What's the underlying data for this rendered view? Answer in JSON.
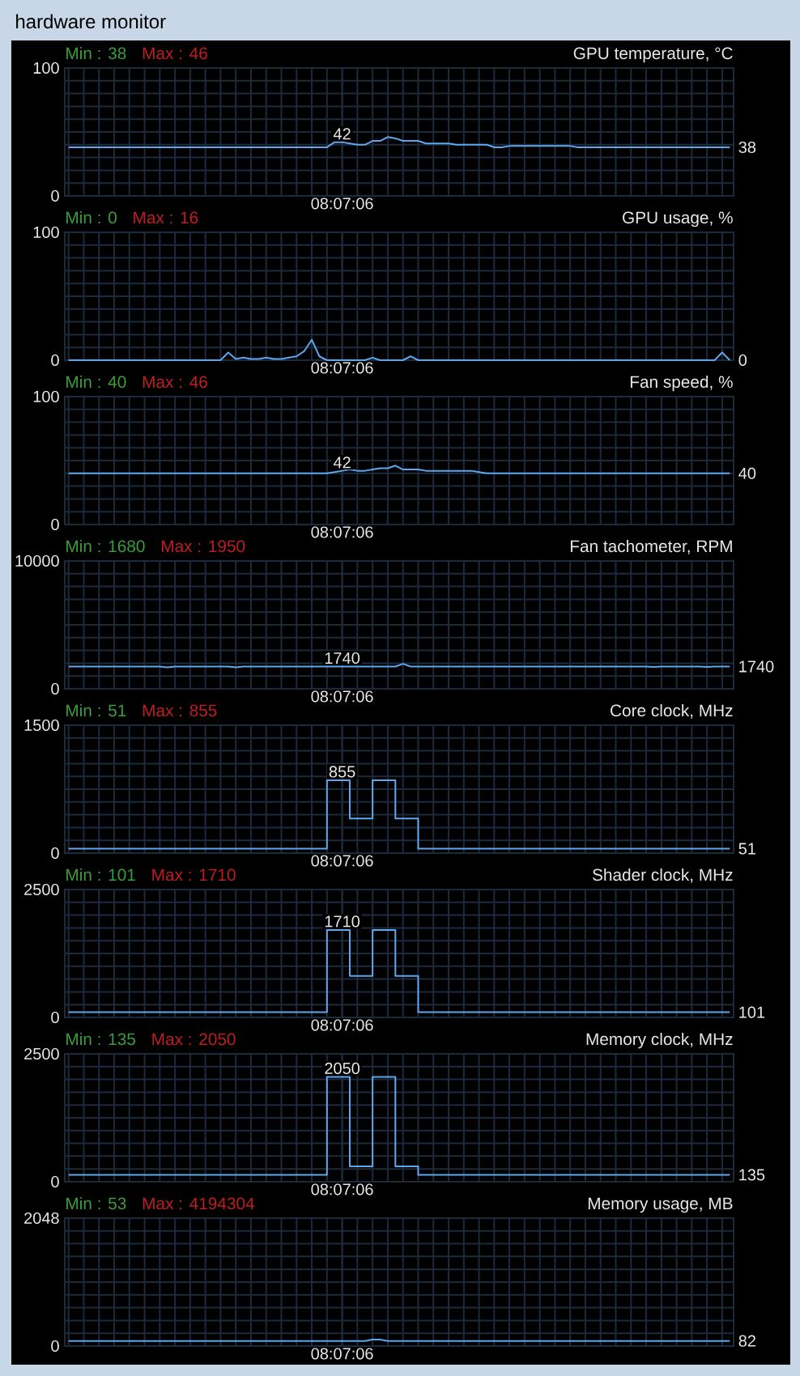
{
  "chart_data": [
    {
      "type": "other",
      "title": "hardware monitor"
    },
    {
      "type": "line",
      "title": "GPU temperature, °C",
      "annotations": [
        "Min : 38",
        "Max : 46"
      ],
      "color": "#5ea6ee",
      "grid": true,
      "ylim": [
        0,
        100
      ],
      "yticks": [
        0,
        {
          "value": 10,
          "label": null
        },
        {
          "value": 20,
          "label": null
        },
        {
          "value": 30,
          "label": null
        },
        {
          "value": 40,
          "label": null
        },
        {
          "value": 50,
          "label": null
        },
        {
          "value": 60,
          "label": null
        },
        {
          "value": 70,
          "label": null
        },
        {
          "value": 80,
          "label": null
        },
        {
          "value": 90,
          "label": null
        },
        100
      ],
      "categories": [
        null,
        null,
        null,
        null,
        null,
        null,
        null,
        null,
        null,
        null,
        null,
        null,
        null,
        null,
        null,
        null,
        null,
        null,
        null,
        null,
        null,
        null,
        null,
        null,
        null,
        null,
        null,
        null,
        null,
        null,
        null,
        null,
        null,
        null,
        null,
        null,
        "08:07:06",
        null,
        null,
        null,
        null,
        null,
        null,
        null,
        null,
        null,
        null,
        null,
        null,
        null,
        null,
        null,
        null,
        null,
        null,
        null,
        null,
        null,
        null,
        null,
        null,
        null,
        null,
        null,
        null,
        null,
        null,
        null,
        null,
        null,
        null,
        null,
        null,
        null,
        null,
        null,
        null,
        null,
        null,
        null,
        null,
        null,
        null,
        null,
        null,
        null,
        null,
        null
      ],
      "values": [
        38,
        38,
        38,
        38,
        38,
        38,
        38,
        38,
        38,
        38,
        38,
        38,
        38,
        38,
        38,
        38,
        38,
        38,
        38,
        38,
        38,
        38,
        38,
        38,
        38,
        38,
        38,
        38,
        38,
        38,
        38,
        38,
        38,
        38,
        38,
        42,
        42,
        41,
        40,
        40,
        43,
        43,
        46,
        45,
        43,
        43,
        43,
        41,
        41,
        41,
        41,
        40,
        40,
        40,
        40,
        40,
        38,
        38,
        39,
        39,
        39,
        39,
        39,
        39,
        39,
        39,
        39,
        38,
        38,
        38,
        38,
        38,
        38,
        38,
        38,
        38,
        38,
        38,
        38,
        38,
        38,
        38,
        38,
        38,
        38,
        38,
        38,
        38
      ],
      "value_labels": [
        null,
        null,
        null,
        null,
        null,
        null,
        null,
        null,
        null,
        null,
        null,
        null,
        null,
        null,
        null,
        null,
        null,
        null,
        null,
        null,
        null,
        null,
        null,
        null,
        null,
        null,
        null,
        null,
        null,
        null,
        null,
        null,
        null,
        null,
        null,
        null,
        "42",
        null,
        null,
        null,
        null,
        null,
        null,
        null,
        null,
        null,
        null,
        null,
        null,
        null,
        null,
        null,
        null,
        null,
        null,
        null,
        null,
        null,
        null,
        null,
        null,
        null,
        null,
        null,
        null,
        null,
        null,
        null,
        null,
        null,
        null,
        null,
        null,
        null,
        null,
        null,
        null,
        null,
        null,
        null,
        null,
        null,
        null,
        null,
        null,
        null,
        null,
        "38"
      ]
    },
    {
      "type": "line",
      "title": "GPU usage, %",
      "annotations": [
        "Min : 0",
        "Max : 16"
      ],
      "color": "#5ea6ee",
      "grid": true,
      "ylim": [
        0,
        100
      ],
      "yticks": [
        0,
        {
          "value": 10,
          "label": null
        },
        {
          "value": 20,
          "label": null
        },
        {
          "value": 30,
          "label": null
        },
        {
          "value": 40,
          "label": null
        },
        {
          "value": 50,
          "label": null
        },
        {
          "value": 60,
          "label": null
        },
        {
          "value": 70,
          "label": null
        },
        {
          "value": 80,
          "label": null
        },
        {
          "value": 90,
          "label": null
        },
        100
      ],
      "categories": [
        null,
        null,
        null,
        null,
        null,
        null,
        null,
        null,
        null,
        null,
        null,
        null,
        null,
        null,
        null,
        null,
        null,
        null,
        null,
        null,
        null,
        null,
        null,
        null,
        null,
        null,
        null,
        null,
        null,
        null,
        null,
        null,
        null,
        null,
        null,
        null,
        "08:07:06",
        null,
        null,
        null,
        null,
        null,
        null,
        null,
        null,
        null,
        null,
        null,
        null,
        null,
        null,
        null,
        null,
        null,
        null,
        null,
        null,
        null,
        null,
        null,
        null,
        null,
        null,
        null,
        null,
        null,
        null,
        null,
        null,
        null,
        null,
        null,
        null,
        null,
        null,
        null,
        null,
        null,
        null,
        null,
        null,
        null,
        null,
        null,
        null,
        null,
        null,
        null
      ],
      "values": [
        0,
        0,
        0,
        0,
        0,
        0,
        0,
        0,
        0,
        0,
        0,
        0,
        0,
        0,
        0,
        0,
        0,
        0,
        0,
        0,
        0,
        6,
        1,
        2,
        1,
        1,
        2,
        1,
        1,
        2,
        3,
        7,
        16,
        3,
        0,
        0,
        0,
        0,
        0,
        0,
        2,
        0,
        0,
        0,
        0,
        3,
        0,
        0,
        0,
        0,
        0,
        0,
        0,
        0,
        0,
        0,
        0,
        0,
        0,
        0,
        0,
        0,
        0,
        0,
        0,
        0,
        0,
        0,
        0,
        0,
        0,
        0,
        0,
        0,
        0,
        0,
        0,
        0,
        0,
        0,
        0,
        0,
        0,
        0,
        0,
        0,
        6,
        0
      ],
      "value_labels": [
        null,
        null,
        null,
        null,
        null,
        null,
        null,
        null,
        null,
        null,
        null,
        null,
        null,
        null,
        null,
        null,
        null,
        null,
        null,
        null,
        null,
        null,
        null,
        null,
        null,
        null,
        null,
        null,
        null,
        null,
        null,
        null,
        null,
        null,
        null,
        null,
        null,
        null,
        null,
        null,
        null,
        null,
        null,
        null,
        null,
        null,
        null,
        null,
        null,
        null,
        null,
        null,
        null,
        null,
        null,
        null,
        null,
        null,
        null,
        null,
        null,
        null,
        null,
        null,
        null,
        null,
        null,
        null,
        null,
        null,
        null,
        null,
        null,
        null,
        null,
        null,
        null,
        null,
        null,
        null,
        null,
        null,
        null,
        null,
        null,
        null,
        null,
        "0"
      ]
    },
    {
      "type": "line",
      "title": "Fan speed, %",
      "annotations": [
        "Min : 40",
        "Max : 46"
      ],
      "color": "#5ea6ee",
      "grid": true,
      "ylim": [
        0,
        100
      ],
      "yticks": [
        0,
        {
          "value": 10,
          "label": null
        },
        {
          "value": 20,
          "label": null
        },
        {
          "value": 30,
          "label": null
        },
        {
          "value": 40,
          "label": null
        },
        {
          "value": 50,
          "label": null
        },
        {
          "value": 60,
          "label": null
        },
        {
          "value": 70,
          "label": null
        },
        {
          "value": 80,
          "label": null
        },
        {
          "value": 90,
          "label": null
        },
        100
      ],
      "categories": [
        null,
        null,
        null,
        null,
        null,
        null,
        null,
        null,
        null,
        null,
        null,
        null,
        null,
        null,
        null,
        null,
        null,
        null,
        null,
        null,
        null,
        null,
        null,
        null,
        null,
        null,
        null,
        null,
        null,
        null,
        null,
        null,
        null,
        null,
        null,
        null,
        "08:07:06",
        null,
        null,
        null,
        null,
        null,
        null,
        null,
        null,
        null,
        null,
        null,
        null,
        null,
        null,
        null,
        null,
        null,
        null,
        null,
        null,
        null,
        null,
        null,
        null,
        null,
        null,
        null,
        null,
        null,
        null,
        null,
        null,
        null,
        null,
        null,
        null,
        null,
        null,
        null,
        null,
        null,
        null,
        null,
        null,
        null,
        null,
        null,
        null,
        null,
        null,
        null
      ],
      "values": [
        40,
        40,
        40,
        40,
        40,
        40,
        40,
        40,
        40,
        40,
        40,
        40,
        40,
        40,
        40,
        40,
        40,
        40,
        40,
        40,
        40,
        40,
        40,
        40,
        40,
        40,
        40,
        40,
        40,
        40,
        40,
        40,
        40,
        40,
        40,
        41,
        42,
        43,
        42,
        42,
        43,
        44,
        44,
        46,
        43,
        43,
        43,
        42,
        42,
        42,
        42,
        42,
        42,
        42,
        41,
        40,
        40,
        40,
        40,
        40,
        40,
        40,
        40,
        40,
        40,
        40,
        40,
        40,
        40,
        40,
        40,
        40,
        40,
        40,
        40,
        40,
        40,
        40,
        40,
        40,
        40,
        40,
        40,
        40,
        40,
        40,
        40,
        40
      ],
      "value_labels": [
        null,
        null,
        null,
        null,
        null,
        null,
        null,
        null,
        null,
        null,
        null,
        null,
        null,
        null,
        null,
        null,
        null,
        null,
        null,
        null,
        null,
        null,
        null,
        null,
        null,
        null,
        null,
        null,
        null,
        null,
        null,
        null,
        null,
        null,
        null,
        null,
        "42",
        null,
        null,
        null,
        null,
        null,
        null,
        null,
        null,
        null,
        null,
        null,
        null,
        null,
        null,
        null,
        null,
        null,
        null,
        null,
        null,
        null,
        null,
        null,
        null,
        null,
        null,
        null,
        null,
        null,
        null,
        null,
        null,
        null,
        null,
        null,
        null,
        null,
        null,
        null,
        null,
        null,
        null,
        null,
        null,
        null,
        null,
        null,
        null,
        null,
        null,
        "40"
      ]
    },
    {
      "type": "line",
      "title": "Fan tachometer, RPM",
      "annotations": [
        "Min : 1680",
        "Max : 1950"
      ],
      "color": "#5ea6ee",
      "grid": true,
      "ylim": [
        0,
        10000
      ],
      "yticks": [
        0,
        {
          "value": 1000,
          "label": null
        },
        {
          "value": 2000,
          "label": null
        },
        {
          "value": 3000,
          "label": null
        },
        {
          "value": 4000,
          "label": null
        },
        {
          "value": 5000,
          "label": null
        },
        {
          "value": 6000,
          "label": null
        },
        {
          "value": 7000,
          "label": null
        },
        {
          "value": 8000,
          "label": null
        },
        {
          "value": 9000,
          "label": null
        },
        10000
      ],
      "categories": [
        null,
        null,
        null,
        null,
        null,
        null,
        null,
        null,
        null,
        null,
        null,
        null,
        null,
        null,
        null,
        null,
        null,
        null,
        null,
        null,
        null,
        null,
        null,
        null,
        null,
        null,
        null,
        null,
        null,
        null,
        null,
        null,
        null,
        null,
        null,
        null,
        "08:07:06",
        null,
        null,
        null,
        null,
        null,
        null,
        null,
        null,
        null,
        null,
        null,
        null,
        null,
        null,
        null,
        null,
        null,
        null,
        null,
        null,
        null,
        null,
        null,
        null,
        null,
        null,
        null,
        null,
        null,
        null,
        null,
        null,
        null,
        null,
        null,
        null,
        null,
        null,
        null,
        null,
        null,
        null,
        null,
        null,
        null,
        null,
        null,
        null,
        null,
        null,
        null
      ],
      "values": [
        1740,
        1740,
        1740,
        1740,
        1740,
        1740,
        1740,
        1740,
        1740,
        1740,
        1740,
        1740,
        1740,
        1680,
        1740,
        1740,
        1740,
        1740,
        1740,
        1740,
        1740,
        1740,
        1680,
        1740,
        1740,
        1740,
        1740,
        1740,
        1740,
        1740,
        1740,
        1740,
        1740,
        1740,
        1740,
        1740,
        1740,
        1740,
        1740,
        1740,
        1740,
        1740,
        1740,
        1740,
        1950,
        1740,
        1740,
        1740,
        1740,
        1740,
        1740,
        1740,
        1740,
        1740,
        1740,
        1740,
        1740,
        1740,
        1740,
        1740,
        1740,
        1740,
        1740,
        1740,
        1740,
        1740,
        1740,
        1740,
        1740,
        1740,
        1740,
        1740,
        1740,
        1740,
        1740,
        1740,
        1740,
        1710,
        1740,
        1740,
        1740,
        1740,
        1740,
        1740,
        1710,
        1740,
        1740,
        1740
      ],
      "value_labels": [
        null,
        null,
        null,
        null,
        null,
        null,
        null,
        null,
        null,
        null,
        null,
        null,
        null,
        null,
        null,
        null,
        null,
        null,
        null,
        null,
        null,
        null,
        null,
        null,
        null,
        null,
        null,
        null,
        null,
        null,
        null,
        null,
        null,
        null,
        null,
        null,
        "1740",
        null,
        null,
        null,
        null,
        null,
        null,
        null,
        null,
        null,
        null,
        null,
        null,
        null,
        null,
        null,
        null,
        null,
        null,
        null,
        null,
        null,
        null,
        null,
        null,
        null,
        null,
        null,
        null,
        null,
        null,
        null,
        null,
        null,
        null,
        null,
        null,
        null,
        null,
        null,
        null,
        null,
        null,
        null,
        null,
        null,
        null,
        null,
        null,
        null,
        null,
        "1740"
      ]
    },
    {
      "type": "step",
      "title": "Core clock, MHz",
      "annotations": [
        "Min : 51",
        "Max : 855"
      ],
      "color": "#5ea6ee",
      "grid": true,
      "ylim": [
        0,
        1500
      ],
      "yticks": [
        0,
        {
          "value": 150,
          "label": null
        },
        {
          "value": 300,
          "label": null
        },
        {
          "value": 450,
          "label": null
        },
        {
          "value": 600,
          "label": null
        },
        {
          "value": 750,
          "label": null
        },
        {
          "value": 900,
          "label": null
        },
        {
          "value": 1050,
          "label": null
        },
        {
          "value": 1200,
          "label": null
        },
        {
          "value": 1350,
          "label": null
        },
        1500
      ],
      "categories": [
        null,
        null,
        null,
        null,
        null,
        null,
        null,
        null,
        null,
        null,
        null,
        null,
        null,
        null,
        null,
        null,
        null,
        null,
        null,
        null,
        null,
        null,
        null,
        null,
        null,
        null,
        null,
        null,
        null,
        null,
        null,
        null,
        null,
        null,
        null,
        null,
        "08:07:06",
        null,
        null,
        null,
        null,
        null,
        null,
        null,
        null,
        null,
        null,
        null,
        null,
        null,
        null,
        null,
        null,
        null,
        null,
        null,
        null,
        null,
        null,
        null,
        null,
        null,
        null,
        null,
        null,
        null,
        null,
        null,
        null,
        null,
        null,
        null,
        null,
        null,
        null,
        null,
        null,
        null,
        null,
        null,
        null,
        null,
        null,
        null,
        null,
        null,
        null,
        null
      ],
      "values": [
        51,
        51,
        51,
        51,
        51,
        51,
        51,
        51,
        51,
        51,
        51,
        51,
        51,
        51,
        51,
        51,
        51,
        51,
        51,
        51,
        51,
        51,
        51,
        51,
        51,
        51,
        51,
        51,
        51,
        51,
        51,
        51,
        51,
        51,
        855,
        855,
        855,
        405,
        405,
        405,
        855,
        855,
        855,
        405,
        405,
        405,
        51,
        51,
        51,
        51,
        51,
        51,
        51,
        51,
        51,
        51,
        51,
        51,
        51,
        51,
        51,
        51,
        51,
        51,
        51,
        51,
        51,
        51,
        51,
        51,
        51,
        51,
        51,
        51,
        51,
        51,
        51,
        51,
        51,
        51,
        51,
        51,
        51,
        51,
        51,
        51,
        51,
        51
      ],
      "value_labels": [
        null,
        null,
        null,
        null,
        null,
        null,
        null,
        null,
        null,
        null,
        null,
        null,
        null,
        null,
        null,
        null,
        null,
        null,
        null,
        null,
        null,
        null,
        null,
        null,
        null,
        null,
        null,
        null,
        null,
        null,
        null,
        null,
        null,
        null,
        null,
        null,
        "855",
        null,
        null,
        null,
        null,
        null,
        null,
        null,
        null,
        null,
        null,
        null,
        null,
        null,
        null,
        null,
        null,
        null,
        null,
        null,
        null,
        null,
        null,
        null,
        null,
        null,
        null,
        null,
        null,
        null,
        null,
        null,
        null,
        null,
        null,
        null,
        null,
        null,
        null,
        null,
        null,
        null,
        null,
        null,
        null,
        null,
        null,
        null,
        null,
        null,
        null,
        "51"
      ]
    },
    {
      "type": "step",
      "title": "Shader clock, MHz",
      "annotations": [
        "Min : 101",
        "Max : 1710"
      ],
      "color": "#5ea6ee",
      "grid": true,
      "ylim": [
        0,
        2500
      ],
      "yticks": [
        0,
        {
          "value": 250,
          "label": null
        },
        {
          "value": 500,
          "label": null
        },
        {
          "value": 750,
          "label": null
        },
        {
          "value": 1000,
          "label": null
        },
        {
          "value": 1250,
          "label": null
        },
        {
          "value": 1500,
          "label": null
        },
        {
          "value": 1750,
          "label": null
        },
        {
          "value": 2000,
          "label": null
        },
        {
          "value": 2250,
          "label": null
        },
        2500
      ],
      "categories": [
        null,
        null,
        null,
        null,
        null,
        null,
        null,
        null,
        null,
        null,
        null,
        null,
        null,
        null,
        null,
        null,
        null,
        null,
        null,
        null,
        null,
        null,
        null,
        null,
        null,
        null,
        null,
        null,
        null,
        null,
        null,
        null,
        null,
        null,
        null,
        null,
        "08:07:06",
        null,
        null,
        null,
        null,
        null,
        null,
        null,
        null,
        null,
        null,
        null,
        null,
        null,
        null,
        null,
        null,
        null,
        null,
        null,
        null,
        null,
        null,
        null,
        null,
        null,
        null,
        null,
        null,
        null,
        null,
        null,
        null,
        null,
        null,
        null,
        null,
        null,
        null,
        null,
        null,
        null,
        null,
        null,
        null,
        null,
        null,
        null,
        null,
        null,
        null,
        null
      ],
      "values": [
        101,
        101,
        101,
        101,
        101,
        101,
        101,
        101,
        101,
        101,
        101,
        101,
        101,
        101,
        101,
        101,
        101,
        101,
        101,
        101,
        101,
        101,
        101,
        101,
        101,
        101,
        101,
        101,
        101,
        101,
        101,
        101,
        101,
        101,
        1710,
        1710,
        1710,
        810,
        810,
        810,
        1710,
        1710,
        1710,
        810,
        810,
        810,
        101,
        101,
        101,
        101,
        101,
        101,
        101,
        101,
        101,
        101,
        101,
        101,
        101,
        101,
        101,
        101,
        101,
        101,
        101,
        101,
        101,
        101,
        101,
        101,
        101,
        101,
        101,
        101,
        101,
        101,
        101,
        101,
        101,
        101,
        101,
        101,
        101,
        101,
        101,
        101,
        101,
        101
      ],
      "value_labels": [
        null,
        null,
        null,
        null,
        null,
        null,
        null,
        null,
        null,
        null,
        null,
        null,
        null,
        null,
        null,
        null,
        null,
        null,
        null,
        null,
        null,
        null,
        null,
        null,
        null,
        null,
        null,
        null,
        null,
        null,
        null,
        null,
        null,
        null,
        null,
        null,
        "1710",
        null,
        null,
        null,
        null,
        null,
        null,
        null,
        null,
        null,
        null,
        null,
        null,
        null,
        null,
        null,
        null,
        null,
        null,
        null,
        null,
        null,
        null,
        null,
        null,
        null,
        null,
        null,
        null,
        null,
        null,
        null,
        null,
        null,
        null,
        null,
        null,
        null,
        null,
        null,
        null,
        null,
        null,
        null,
        null,
        null,
        null,
        null,
        null,
        null,
        null,
        "101"
      ]
    },
    {
      "type": "step",
      "title": "Memory clock, MHz",
      "annotations": [
        "Min : 135",
        "Max : 2050"
      ],
      "color": "#5ea6ee",
      "grid": true,
      "ylim": [
        0,
        2500
      ],
      "yticks": [
        0,
        {
          "value": 250,
          "label": null
        },
        {
          "value": 500,
          "label": null
        },
        {
          "value": 750,
          "label": null
        },
        {
          "value": 1000,
          "label": null
        },
        {
          "value": 1250,
          "label": null
        },
        {
          "value": 1500,
          "label": null
        },
        {
          "value": 1750,
          "label": null
        },
        {
          "value": 2000,
          "label": null
        },
        {
          "value": 2250,
          "label": null
        },
        2500
      ],
      "categories": [
        null,
        null,
        null,
        null,
        null,
        null,
        null,
        null,
        null,
        null,
        null,
        null,
        null,
        null,
        null,
        null,
        null,
        null,
        null,
        null,
        null,
        null,
        null,
        null,
        null,
        null,
        null,
        null,
        null,
        null,
        null,
        null,
        null,
        null,
        null,
        null,
        "08:07:06",
        null,
        null,
        null,
        null,
        null,
        null,
        null,
        null,
        null,
        null,
        null,
        null,
        null,
        null,
        null,
        null,
        null,
        null,
        null,
        null,
        null,
        null,
        null,
        null,
        null,
        null,
        null,
        null,
        null,
        null,
        null,
        null,
        null,
        null,
        null,
        null,
        null,
        null,
        null,
        null,
        null,
        null,
        null,
        null,
        null,
        null,
        null,
        null,
        null,
        null,
        null
      ],
      "values": [
        135,
        135,
        135,
        135,
        135,
        135,
        135,
        135,
        135,
        135,
        135,
        135,
        135,
        135,
        135,
        135,
        135,
        135,
        135,
        135,
        135,
        135,
        135,
        135,
        135,
        135,
        135,
        135,
        135,
        135,
        135,
        135,
        135,
        135,
        2050,
        2050,
        2050,
        300,
        300,
        300,
        2050,
        2050,
        2050,
        300,
        300,
        300,
        135,
        135,
        135,
        135,
        135,
        135,
        135,
        135,
        135,
        135,
        135,
        135,
        135,
        135,
        135,
        135,
        135,
        135,
        135,
        135,
        135,
        135,
        135,
        135,
        135,
        135,
        135,
        135,
        135,
        135,
        135,
        135,
        135,
        135,
        135,
        135,
        135,
        135,
        135,
        135,
        135,
        135
      ],
      "value_labels": [
        null,
        null,
        null,
        null,
        null,
        null,
        null,
        null,
        null,
        null,
        null,
        null,
        null,
        null,
        null,
        null,
        null,
        null,
        null,
        null,
        null,
        null,
        null,
        null,
        null,
        null,
        null,
        null,
        null,
        null,
        null,
        null,
        null,
        null,
        null,
        null,
        "2050",
        null,
        null,
        null,
        null,
        null,
        null,
        null,
        null,
        null,
        null,
        null,
        null,
        null,
        null,
        null,
        null,
        null,
        null,
        null,
        null,
        null,
        null,
        null,
        null,
        null,
        null,
        null,
        null,
        null,
        null,
        null,
        null,
        null,
        null,
        null,
        null,
        null,
        null,
        null,
        null,
        null,
        null,
        null,
        null,
        null,
        null,
        null,
        null,
        null,
        null,
        "135"
      ]
    },
    {
      "type": "line",
      "title": "Memory usage, MB",
      "annotations": [
        "Min : 53",
        "Max : 4194304"
      ],
      "color": "#5ea6ee",
      "grid": true,
      "ylim": [
        0,
        2048
      ],
      "yticks": [
        0,
        {
          "value": 204.8,
          "label": null
        },
        {
          "value": 409.6,
          "label": null
        },
        {
          "value": 614.4,
          "label": null
        },
        {
          "value": 819.2,
          "label": null
        },
        {
          "value": 1024,
          "label": null
        },
        {
          "value": 1228.8,
          "label": null
        },
        {
          "value": 1433.6,
          "label": null
        },
        {
          "value": 1638.4,
          "label": null
        },
        {
          "value": 1843.2,
          "label": null
        },
        2048
      ],
      "categories": [
        null,
        null,
        null,
        null,
        null,
        null,
        null,
        null,
        null,
        null,
        null,
        null,
        null,
        null,
        null,
        null,
        null,
        null,
        null,
        null,
        null,
        null,
        null,
        null,
        null,
        null,
        null,
        null,
        null,
        null,
        null,
        null,
        null,
        null,
        null,
        null,
        "08:07:06",
        null,
        null,
        null,
        null,
        null,
        null,
        null,
        null,
        null,
        null,
        null,
        null,
        null,
        null,
        null,
        null,
        null,
        null,
        null,
        null,
        null,
        null,
        null,
        null,
        null,
        null,
        null,
        null,
        null,
        null,
        null,
        null,
        null,
        null,
        null,
        null,
        null,
        null,
        null,
        null,
        null,
        null,
        null,
        null,
        null,
        null,
        null,
        null,
        null,
        null,
        null
      ],
      "values": [
        82,
        82,
        82,
        82,
        82,
        82,
        82,
        82,
        82,
        82,
        82,
        82,
        82,
        82,
        82,
        82,
        82,
        82,
        82,
        82,
        82,
        82,
        82,
        82,
        82,
        82,
        82,
        82,
        82,
        82,
        82,
        82,
        82,
        82,
        82,
        82,
        82,
        82,
        82,
        82,
        102,
        102,
        82,
        82,
        82,
        82,
        82,
        82,
        82,
        82,
        82,
        82,
        82,
        82,
        82,
        82,
        82,
        82,
        82,
        82,
        82,
        82,
        82,
        82,
        82,
        82,
        82,
        82,
        82,
        82,
        82,
        82,
        82,
        82,
        82,
        82,
        82,
        82,
        82,
        82,
        82,
        82,
        82,
        82,
        82,
        82,
        82,
        82
      ],
      "value_labels": [
        null,
        null,
        null,
        null,
        null,
        null,
        null,
        null,
        null,
        null,
        null,
        null,
        null,
        null,
        null,
        null,
        null,
        null,
        null,
        null,
        null,
        null,
        null,
        null,
        null,
        null,
        null,
        null,
        null,
        null,
        null,
        null,
        null,
        null,
        null,
        null,
        null,
        null,
        null,
        null,
        null,
        null,
        null,
        null,
        null,
        null,
        null,
        null,
        null,
        null,
        null,
        null,
        null,
        null,
        null,
        null,
        null,
        null,
        null,
        null,
        null,
        null,
        null,
        null,
        null,
        null,
        null,
        null,
        null,
        null,
        null,
        null,
        null,
        null,
        null,
        null,
        null,
        null,
        null,
        null,
        null,
        null,
        null,
        null,
        null,
        null,
        null,
        "82"
      ]
    }
  ]
}
